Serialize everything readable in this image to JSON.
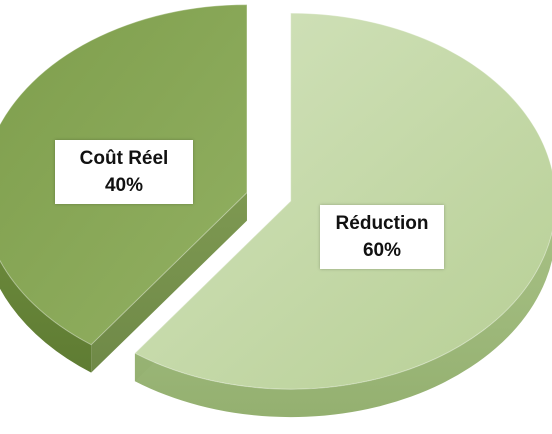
{
  "chart_data": {
    "type": "pie",
    "title": "",
    "slices": [
      {
        "label": "Coût Réel",
        "value": 40,
        "value_label": "40%",
        "color": "#8aa95a",
        "exploded": true
      },
      {
        "label": "Réduction",
        "value": 60,
        "value_label": "60%",
        "color": "#c0d6a2",
        "exploded": false
      }
    ],
    "style": "3d-exploded",
    "legend": "none"
  }
}
